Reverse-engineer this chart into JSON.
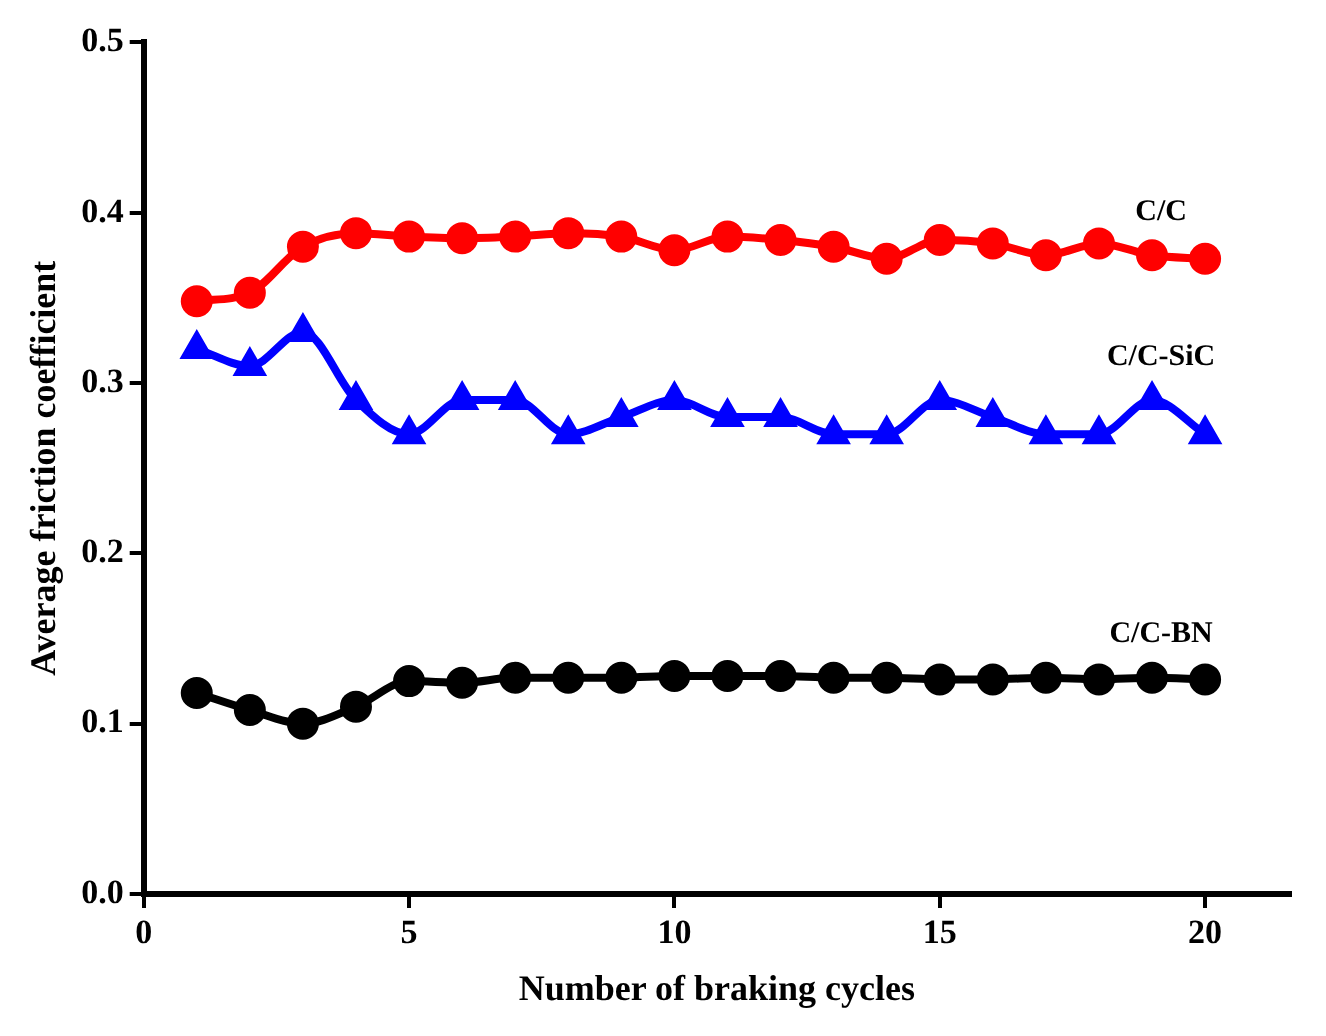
{
  "chart_data": {
    "type": "line",
    "xlabel": "Number of braking cycles",
    "ylabel": "Average friction coefficient",
    "x": [
      1,
      2,
      3,
      4,
      5,
      6,
      7,
      8,
      9,
      10,
      11,
      12,
      13,
      14,
      15,
      16,
      17,
      18,
      19,
      20
    ],
    "series": [
      {
        "name": "C/C",
        "color": "#ff0000",
        "marker": "circle",
        "values": [
          0.348,
          0.353,
          0.38,
          0.388,
          0.386,
          0.385,
          0.386,
          0.388,
          0.386,
          0.378,
          0.386,
          0.384,
          0.38,
          0.373,
          0.384,
          0.382,
          0.375,
          0.382,
          0.375,
          0.373
        ]
      },
      {
        "name": "C/C-SiC",
        "color": "#0000ff",
        "marker": "triangle",
        "values": [
          0.32,
          0.31,
          0.33,
          0.29,
          0.27,
          0.29,
          0.29,
          0.27,
          0.28,
          0.29,
          0.28,
          0.28,
          0.27,
          0.27,
          0.29,
          0.28,
          0.27,
          0.27,
          0.29,
          0.27
        ]
      },
      {
        "name": "C/C-BN",
        "color": "#000000",
        "marker": "circle",
        "values": [
          0.118,
          0.108,
          0.1,
          0.11,
          0.125,
          0.124,
          0.127,
          0.127,
          0.127,
          0.128,
          0.128,
          0.128,
          0.127,
          0.127,
          0.126,
          0.126,
          0.127,
          0.126,
          0.127,
          0.126
        ]
      }
    ],
    "xlim": [
      0,
      21.6
    ],
    "xticks": [
      0,
      5,
      10,
      15,
      20
    ],
    "ylim": [
      0,
      0.5
    ],
    "yticks": [
      {
        "value": 0,
        "label": "0.0"
      },
      {
        "value": 0.1,
        "label": "0.1"
      },
      {
        "value": 0.2,
        "label": "0.2"
      },
      {
        "value": 0.3,
        "label": "0.3"
      },
      {
        "value": 0.4,
        "label": "0.4"
      },
      {
        "value": 0.5,
        "label": "0.5"
      }
    ],
    "grid": false,
    "legend": false,
    "line_style": "solid"
  }
}
